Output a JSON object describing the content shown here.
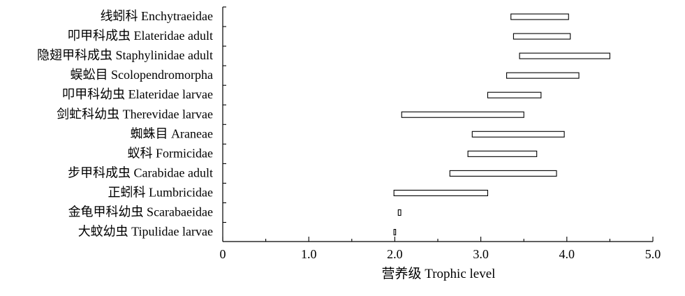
{
  "chart_data": {
    "type": "range-bar",
    "xlabel": "营养级 Trophic level",
    "xlim": [
      0,
      5
    ],
    "xticks": [
      "0",
      "1.0",
      "2.0",
      "3.0",
      "4.0",
      "5.0"
    ],
    "xtick_values": [
      0,
      1,
      2,
      3,
      4,
      5
    ],
    "grid": false,
    "categories": [
      "线蚓科 Enchytraeidae",
      "叩甲科成虫 Elateridae adult",
      "隐翅甲科成虫 Staphylinidae adult",
      "蜈蚣目 Scolopendromorpha",
      "叩甲科幼虫 Elateridae larvae",
      "剑虻科幼虫 Therevidae larvae",
      "蜘蛛目 Araneae",
      "蚁科 Formicidae",
      "步甲科成虫 Carabidae adult",
      "正蚓科 Lumbricidae",
      "金龟甲科幼虫 Scarabaeidae",
      "大蚊幼虫 Tipulidae larvae"
    ],
    "ranges": [
      [
        3.35,
        4.02
      ],
      [
        3.38,
        4.04
      ],
      [
        3.45,
        4.5
      ],
      [
        3.3,
        4.14
      ],
      [
        3.08,
        3.7
      ],
      [
        2.08,
        3.5
      ],
      [
        2.9,
        3.97
      ],
      [
        2.85,
        3.65
      ],
      [
        2.64,
        3.88
      ],
      [
        1.99,
        3.08
      ],
      [
        2.04,
        2.07
      ],
      [
        1.99,
        2.01
      ]
    ]
  }
}
